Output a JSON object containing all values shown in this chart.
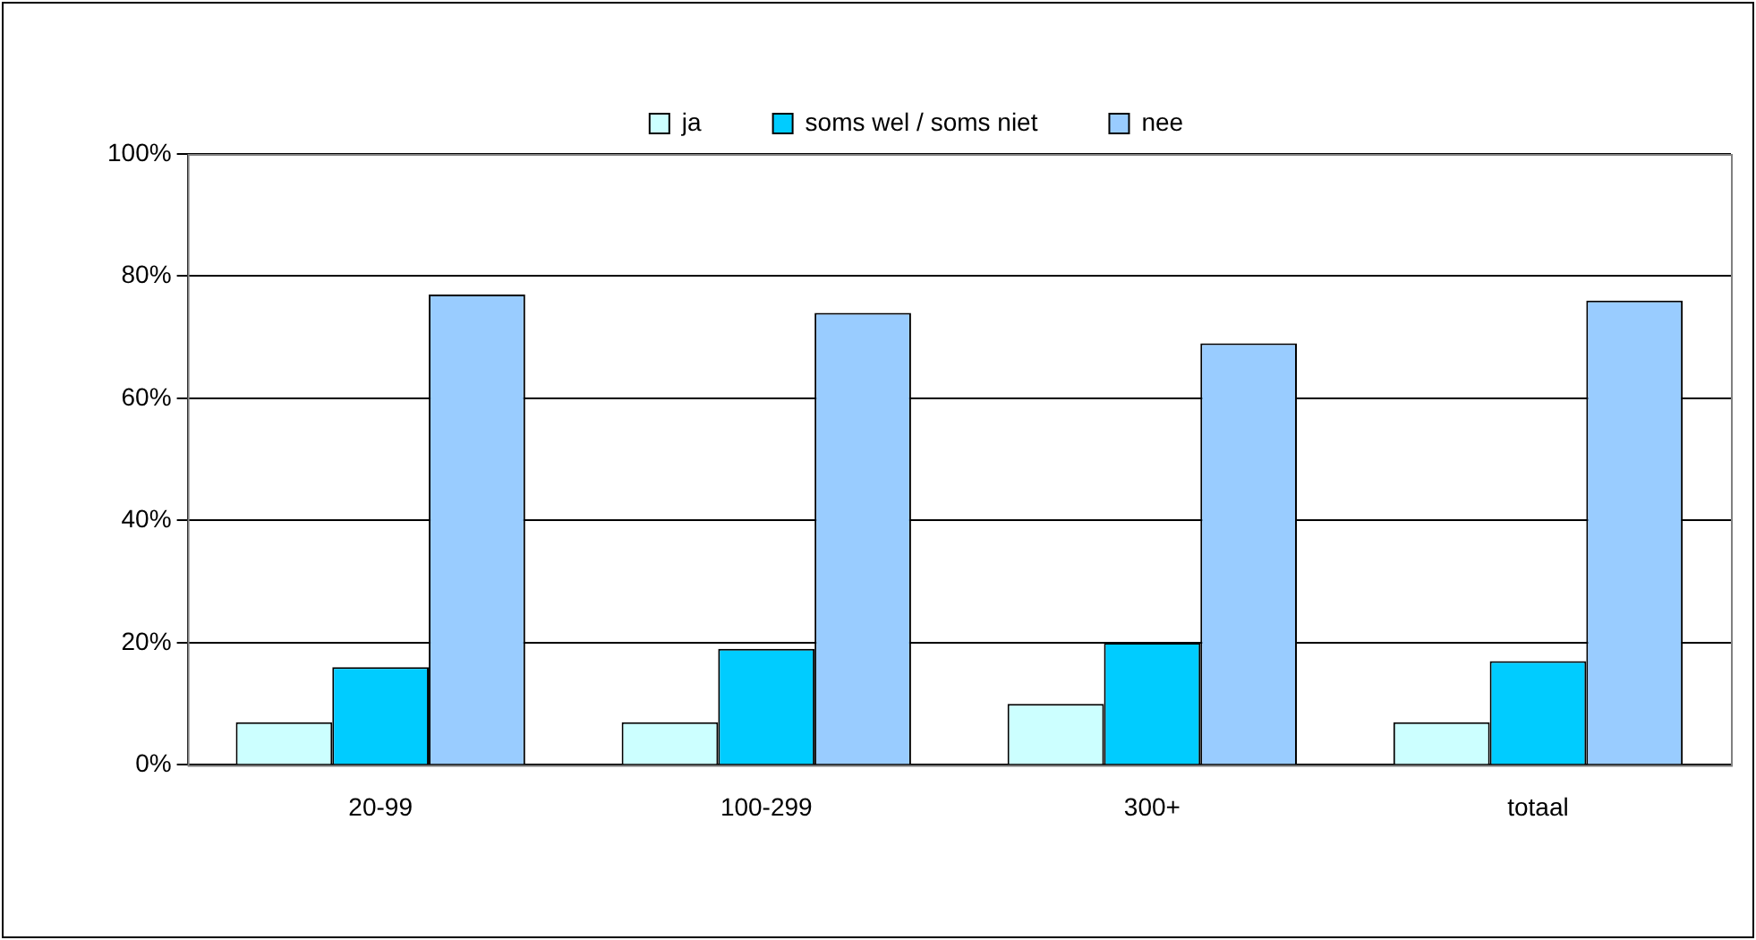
{
  "chart_data": {
    "type": "bar",
    "categories": [
      "20-99",
      "100-299",
      "300+",
      "totaal"
    ],
    "series": [
      {
        "name": "ja",
        "color": "#ccffff",
        "values": [
          7,
          7,
          10,
          7
        ]
      },
      {
        "name": "soms wel / soms niet",
        "color": "#00ccff",
        "values": [
          16,
          19,
          20,
          17
        ]
      },
      {
        "name": "nee",
        "color": "#99ccff",
        "values": [
          77,
          74,
          69,
          76
        ]
      }
    ],
    "ylim": [
      0,
      100
    ],
    "yticks": [
      {
        "value": 0,
        "label": "0%"
      },
      {
        "value": 20,
        "label": "20%"
      },
      {
        "value": 40,
        "label": "40%"
      },
      {
        "value": 60,
        "label": "60%"
      },
      {
        "value": 80,
        "label": "80%"
      },
      {
        "value": 100,
        "label": "100%"
      }
    ],
    "grid": "y",
    "legend": "top"
  }
}
